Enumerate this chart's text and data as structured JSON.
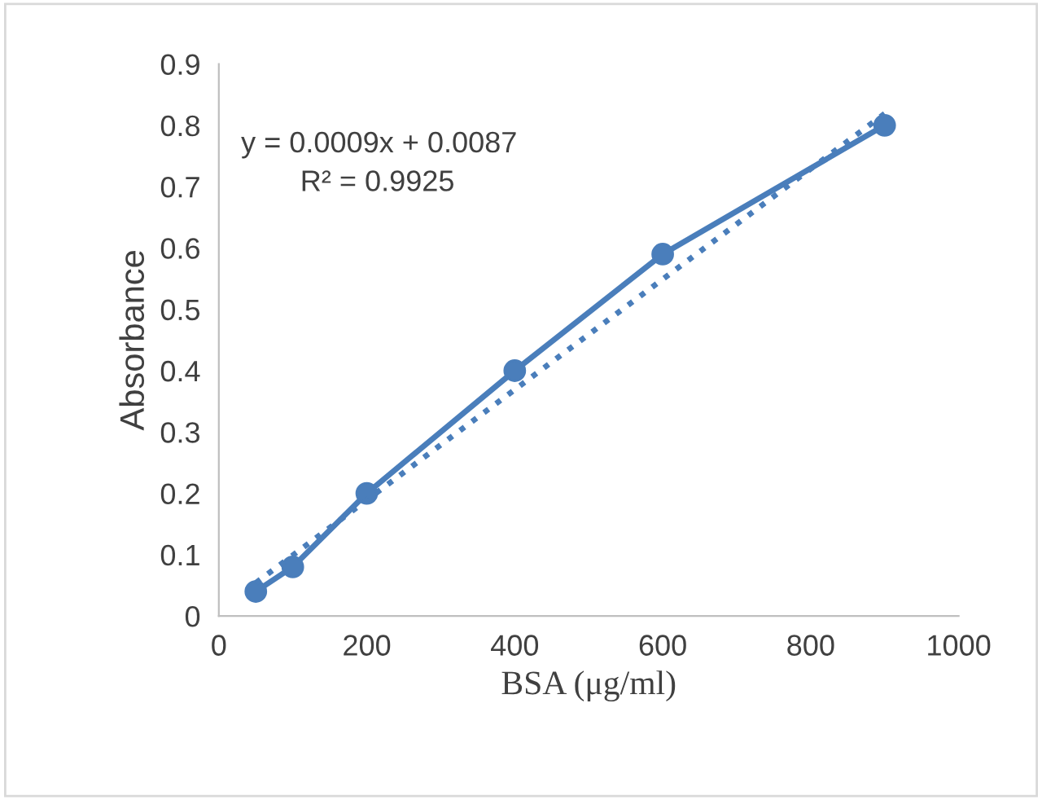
{
  "chart_data": {
    "type": "line",
    "xlabel": "BSA (μg/ml)",
    "ylabel": "Absorbance",
    "annotations": [
      "y = 0.0009x + 0.0087",
      "R² = 0.9925"
    ],
    "series": [
      {
        "x": [
          50,
          100,
          200,
          400,
          600,
          900
        ],
        "values": [
          0.04,
          0.08,
          0.2,
          0.4,
          0.59,
          0.8
        ],
        "color": "#4a7ebb",
        "marker": "circle",
        "line_style": "solid"
      },
      {
        "type": "line",
        "x": [
          50,
          900
        ],
        "values": [
          0.054,
          0.819
        ],
        "color": "#4a7ebb",
        "marker": "none",
        "line_style": "dotted"
      }
    ],
    "xlim": [
      0,
      1000
    ],
    "xticks": [
      0,
      200,
      400,
      600,
      800,
      1000
    ],
    "ylim": [
      0,
      0.9
    ],
    "yticks": [
      0,
      0.1,
      0.2,
      0.3,
      0.4,
      0.5,
      0.6,
      0.7,
      0.8,
      0.9
    ],
    "grid": false,
    "legend": false
  }
}
